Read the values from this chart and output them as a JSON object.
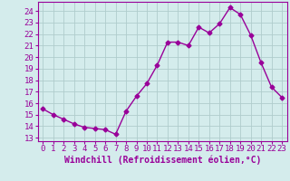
{
  "x": [
    0,
    1,
    2,
    3,
    4,
    5,
    6,
    7,
    8,
    9,
    10,
    11,
    12,
    13,
    14,
    15,
    16,
    17,
    18,
    19,
    20,
    21,
    22,
    23
  ],
  "y": [
    15.5,
    15.0,
    14.6,
    14.2,
    13.9,
    13.8,
    13.7,
    13.3,
    15.3,
    16.6,
    17.7,
    19.3,
    21.3,
    21.3,
    21.0,
    22.6,
    22.1,
    22.9,
    24.3,
    23.7,
    21.9,
    19.5,
    17.4,
    16.5
  ],
  "line_color": "#990099",
  "marker": "D",
  "markersize": 2.5,
  "linewidth": 1.0,
  "bg_color": "#d4ecec",
  "grid_color": "#b0cccc",
  "xlabel": "Windchill (Refroidissement éolien,°C)",
  "xlabel_fontsize": 7,
  "yticks": [
    13,
    14,
    15,
    16,
    17,
    18,
    19,
    20,
    21,
    22,
    23,
    24
  ],
  "xlim": [
    -0.5,
    23.5
  ],
  "ylim": [
    12.7,
    24.8
  ],
  "tick_fontsize": 6.5
}
